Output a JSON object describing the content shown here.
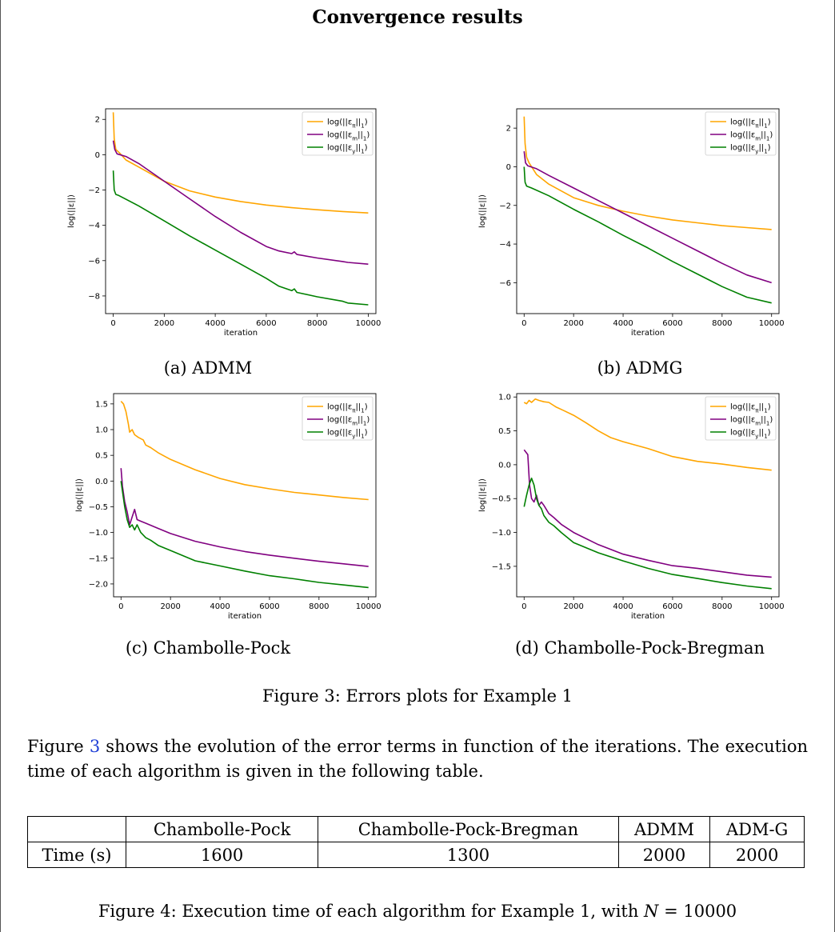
{
  "page": {
    "heading": "Convergence results",
    "figure3_caption": "Figure 3: Errors plots for Example 1",
    "paragraph": {
      "part1": "Figure ",
      "ref": "3",
      "part2": " shows the evolution of the error terms in function of the iterations. The execution time of each algorithm is given in the following table."
    },
    "table": {
      "headers": [
        "",
        "Chambolle-Pock",
        "Chambolle-Pock-Bregman",
        "ADMM",
        "ADM-G"
      ],
      "row_label": "Time (s)",
      "values": [
        "1600",
        "1300",
        "2000",
        "2000"
      ]
    },
    "figure4_caption": {
      "text": "Figure 4: Execution time of each algorithm for Example 1, with ",
      "var": "N",
      "eq": " = 10000"
    }
  },
  "colors": {
    "pi": "#ffa500",
    "m": "#800080",
    "y": "#008000"
  },
  "chart_data": [
    {
      "type": "line",
      "caption": "(a) ADMM",
      "xlabel": "iteration",
      "ylabel": "log(||ε||)",
      "xlim": [
        -300,
        10300
      ],
      "ylim": [
        -9.0,
        2.6
      ],
      "xticks": [
        0,
        2000,
        4000,
        6000,
        8000,
        10000
      ],
      "yticks": [
        -8,
        -6,
        -4,
        -2,
        0,
        2
      ],
      "ytick_labels": [
        "−8",
        "−6",
        "−4",
        "−2",
        "0",
        "2"
      ],
      "legend": "top-right",
      "series": [
        {
          "name": "log(||ε_π||_1)",
          "color": "#ffa500",
          "points": [
            [
              0,
              2.4
            ],
            [
              40,
              0.9
            ],
            [
              100,
              0.3
            ],
            [
              250,
              0.1
            ],
            [
              500,
              -0.3
            ],
            [
              1000,
              -0.7
            ],
            [
              2000,
              -1.5
            ],
            [
              3000,
              -2.05
            ],
            [
              4000,
              -2.4
            ],
            [
              5000,
              -2.65
            ],
            [
              6000,
              -2.85
            ],
            [
              7000,
              -3.0
            ],
            [
              8000,
              -3.12
            ],
            [
              9000,
              -3.22
            ],
            [
              10000,
              -3.3
            ]
          ]
        },
        {
          "name": "log(||ε_m||_1)",
          "color": "#800080",
          "points": [
            [
              0,
              0.8
            ],
            [
              60,
              0.3
            ],
            [
              150,
              0.05
            ],
            [
              500,
              -0.1
            ],
            [
              1000,
              -0.5
            ],
            [
              2000,
              -1.5
            ],
            [
              3000,
              -2.5
            ],
            [
              4000,
              -3.5
            ],
            [
              5000,
              -4.4
            ],
            [
              6000,
              -5.2
            ],
            [
              6500,
              -5.45
            ],
            [
              7000,
              -5.6
            ],
            [
              7100,
              -5.5
            ],
            [
              7200,
              -5.65
            ],
            [
              8000,
              -5.85
            ],
            [
              9000,
              -6.05
            ],
            [
              9200,
              -6.1
            ],
            [
              10000,
              -6.2
            ]
          ]
        },
        {
          "name": "log(||ε_y||_1)",
          "color": "#008000",
          "points": [
            [
              0,
              -0.9
            ],
            [
              40,
              -2.0
            ],
            [
              100,
              -2.25
            ],
            [
              200,
              -2.3
            ],
            [
              1000,
              -2.9
            ],
            [
              2000,
              -3.75
            ],
            [
              3000,
              -4.6
            ],
            [
              4000,
              -5.4
            ],
            [
              5000,
              -6.2
            ],
            [
              6000,
              -7.0
            ],
            [
              6500,
              -7.45
            ],
            [
              7000,
              -7.7
            ],
            [
              7100,
              -7.6
            ],
            [
              7200,
              -7.8
            ],
            [
              8000,
              -8.05
            ],
            [
              9000,
              -8.3
            ],
            [
              9200,
              -8.4
            ],
            [
              10000,
              -8.5
            ]
          ]
        }
      ]
    },
    {
      "type": "line",
      "caption": "(b) ADMG",
      "xlabel": "iteration",
      "ylabel": "log(||ε||)",
      "xlim": [
        -300,
        10300
      ],
      "ylim": [
        -7.6,
        3.0
      ],
      "xticks": [
        0,
        2000,
        4000,
        6000,
        8000,
        10000
      ],
      "yticks": [
        -6,
        -4,
        -2,
        0,
        2
      ],
      "ytick_labels": [
        "−6",
        "−4",
        "−2",
        "0",
        "2"
      ],
      "legend": "top-right",
      "series": [
        {
          "name": "log(||ε_π||_1)",
          "color": "#ffa500",
          "points": [
            [
              0,
              2.6
            ],
            [
              40,
              1.2
            ],
            [
              100,
              0.5
            ],
            [
              200,
              0.2
            ],
            [
              500,
              -0.4
            ],
            [
              1000,
              -0.9
            ],
            [
              2000,
              -1.6
            ],
            [
              3000,
              -2.0
            ],
            [
              4000,
              -2.3
            ],
            [
              5000,
              -2.55
            ],
            [
              6000,
              -2.75
            ],
            [
              7000,
              -2.9
            ],
            [
              8000,
              -3.05
            ],
            [
              9000,
              -3.15
            ],
            [
              10000,
              -3.25
            ]
          ]
        },
        {
          "name": "log(||ε_m||_1)",
          "color": "#800080",
          "points": [
            [
              0,
              0.8
            ],
            [
              60,
              0.2
            ],
            [
              150,
              0.05
            ],
            [
              500,
              -0.1
            ],
            [
              1000,
              -0.45
            ],
            [
              2000,
              -1.1
            ],
            [
              3000,
              -1.75
            ],
            [
              4000,
              -2.4
            ],
            [
              5000,
              -3.05
            ],
            [
              6000,
              -3.7
            ],
            [
              7000,
              -4.35
            ],
            [
              8000,
              -5.0
            ],
            [
              9000,
              -5.6
            ],
            [
              10000,
              -6.0
            ]
          ]
        },
        {
          "name": "log(||ε_y||_1)",
          "color": "#008000",
          "points": [
            [
              0,
              0.0
            ],
            [
              40,
              -0.8
            ],
            [
              100,
              -1.0
            ],
            [
              300,
              -1.1
            ],
            [
              1000,
              -1.5
            ],
            [
              2000,
              -2.2
            ],
            [
              3000,
              -2.85
            ],
            [
              4000,
              -3.55
            ],
            [
              5000,
              -4.2
            ],
            [
              6000,
              -4.9
            ],
            [
              7000,
              -5.55
            ],
            [
              8000,
              -6.2
            ],
            [
              9000,
              -6.75
            ],
            [
              10000,
              -7.05
            ]
          ]
        }
      ]
    },
    {
      "type": "line",
      "caption": "(c) Chambolle-Pock",
      "xlabel": "iteration",
      "ylabel": "log(||ε||)",
      "xlim": [
        -300,
        10300
      ],
      "ylim": [
        -2.25,
        1.7
      ],
      "xticks": [
        0,
        2000,
        4000,
        6000,
        8000,
        10000
      ],
      "yticks": [
        -2.0,
        -1.5,
        -1.0,
        -0.5,
        0.0,
        0.5,
        1.0,
        1.5
      ],
      "ytick_labels": [
        "−2.0",
        "−1.5",
        "−1.0",
        "−0.5",
        "0.0",
        "0.5",
        "1.0",
        "1.5"
      ],
      "legend": "top-right",
      "series": [
        {
          "name": "log(||ε_π||_1)",
          "color": "#ffa500",
          "points": [
            [
              0,
              1.55
            ],
            [
              100,
              1.5
            ],
            [
              200,
              1.35
            ],
            [
              300,
              1.1
            ],
            [
              350,
              0.95
            ],
            [
              450,
              1.0
            ],
            [
              550,
              0.9
            ],
            [
              700,
              0.85
            ],
            [
              900,
              0.8
            ],
            [
              1000,
              0.7
            ],
            [
              1200,
              0.65
            ],
            [
              1500,
              0.55
            ],
            [
              2000,
              0.42
            ],
            [
              3000,
              0.22
            ],
            [
              4000,
              0.05
            ],
            [
              5000,
              -0.07
            ],
            [
              6000,
              -0.15
            ],
            [
              7000,
              -0.22
            ],
            [
              8000,
              -0.27
            ],
            [
              9000,
              -0.32
            ],
            [
              10000,
              -0.36
            ]
          ]
        },
        {
          "name": "log(||ε_m||_1)",
          "color": "#800080",
          "points": [
            [
              0,
              0.25
            ],
            [
              60,
              -0.1
            ],
            [
              150,
              -0.4
            ],
            [
              250,
              -0.6
            ],
            [
              350,
              -0.85
            ],
            [
              450,
              -0.7
            ],
            [
              550,
              -0.55
            ],
            [
              650,
              -0.75
            ],
            [
              800,
              -0.78
            ],
            [
              1000,
              -0.82
            ],
            [
              1500,
              -0.92
            ],
            [
              2000,
              -1.02
            ],
            [
              3000,
              -1.17
            ],
            [
              4000,
              -1.28
            ],
            [
              5000,
              -1.37
            ],
            [
              6000,
              -1.44
            ],
            [
              7000,
              -1.5
            ],
            [
              8000,
              -1.56
            ],
            [
              9000,
              -1.61
            ],
            [
              10000,
              -1.66
            ]
          ]
        },
        {
          "name": "log(||ε_y||_1)",
          "color": "#008000",
          "points": [
            [
              0,
              0.0
            ],
            [
              60,
              -0.2
            ],
            [
              150,
              -0.5
            ],
            [
              250,
              -0.75
            ],
            [
              350,
              -0.9
            ],
            [
              450,
              -0.85
            ],
            [
              550,
              -0.95
            ],
            [
              650,
              -0.85
            ],
            [
              800,
              -1.0
            ],
            [
              1000,
              -1.1
            ],
            [
              1200,
              -1.15
            ],
            [
              1500,
              -1.25
            ],
            [
              2000,
              -1.35
            ],
            [
              3000,
              -1.55
            ],
            [
              4000,
              -1.65
            ],
            [
              5000,
              -1.75
            ],
            [
              6000,
              -1.84
            ],
            [
              7000,
              -1.9
            ],
            [
              8000,
              -1.97
            ],
            [
              9000,
              -2.02
            ],
            [
              10000,
              -2.07
            ]
          ]
        }
      ]
    },
    {
      "type": "line",
      "caption": "(d) Chambolle-Pock-Bregman",
      "xlabel": "iteration",
      "ylabel": "log(||ε||)",
      "xlim": [
        -300,
        10300
      ],
      "ylim": [
        -1.95,
        1.05
      ],
      "xticks": [
        0,
        2000,
        4000,
        6000,
        8000,
        10000
      ],
      "yticks": [
        -1.5,
        -1.0,
        -0.5,
        0.0,
        0.5,
        1.0
      ],
      "ytick_labels": [
        "−1.5",
        "−1.0",
        "−0.5",
        "0.0",
        "0.5",
        "1.0"
      ],
      "legend": "top-right",
      "series": [
        {
          "name": "log(||ε_π||_1)",
          "color": "#ffa500",
          "points": [
            [
              0,
              0.92
            ],
            [
              100,
              0.9
            ],
            [
              200,
              0.95
            ],
            [
              300,
              0.92
            ],
            [
              450,
              0.97
            ],
            [
              600,
              0.95
            ],
            [
              800,
              0.93
            ],
            [
              1000,
              0.92
            ],
            [
              1300,
              0.85
            ],
            [
              1600,
              0.8
            ],
            [
              2000,
              0.73
            ],
            [
              2500,
              0.62
            ],
            [
              3000,
              0.5
            ],
            [
              3500,
              0.4
            ],
            [
              4000,
              0.34
            ],
            [
              5000,
              0.24
            ],
            [
              6000,
              0.12
            ],
            [
              7000,
              0.05
            ],
            [
              8000,
              0.01
            ],
            [
              9000,
              -0.04
            ],
            [
              10000,
              -0.08
            ]
          ]
        },
        {
          "name": "log(||ε_m||_1)",
          "color": "#800080",
          "points": [
            [
              0,
              0.22
            ],
            [
              150,
              0.15
            ],
            [
              220,
              -0.3
            ],
            [
              300,
              -0.5
            ],
            [
              400,
              -0.55
            ],
            [
              500,
              -0.45
            ],
            [
              600,
              -0.6
            ],
            [
              700,
              -0.55
            ],
            [
              800,
              -0.6
            ],
            [
              1000,
              -0.72
            ],
            [
              1200,
              -0.78
            ],
            [
              1500,
              -0.88
            ],
            [
              2000,
              -1.0
            ],
            [
              3000,
              -1.18
            ],
            [
              4000,
              -1.32
            ],
            [
              5000,
              -1.41
            ],
            [
              6000,
              -1.49
            ],
            [
              7000,
              -1.53
            ],
            [
              8000,
              -1.58
            ],
            [
              9000,
              -1.63
            ],
            [
              10000,
              -1.66
            ]
          ]
        },
        {
          "name": "log(||ε_y||_1)",
          "color": "#008000",
          "points": [
            [
              0,
              -0.62
            ],
            [
              100,
              -0.45
            ],
            [
              200,
              -0.3
            ],
            [
              300,
              -0.2
            ],
            [
              400,
              -0.3
            ],
            [
              500,
              -0.5
            ],
            [
              600,
              -0.6
            ],
            [
              700,
              -0.65
            ],
            [
              800,
              -0.75
            ],
            [
              900,
              -0.8
            ],
            [
              1000,
              -0.85
            ],
            [
              1200,
              -0.9
            ],
            [
              1500,
              -1.0
            ],
            [
              2000,
              -1.15
            ],
            [
              3000,
              -1.3
            ],
            [
              4000,
              -1.42
            ],
            [
              5000,
              -1.53
            ],
            [
              6000,
              -1.62
            ],
            [
              7000,
              -1.68
            ],
            [
              8000,
              -1.74
            ],
            [
              9000,
              -1.79
            ],
            [
              10000,
              -1.83
            ]
          ]
        }
      ]
    }
  ]
}
